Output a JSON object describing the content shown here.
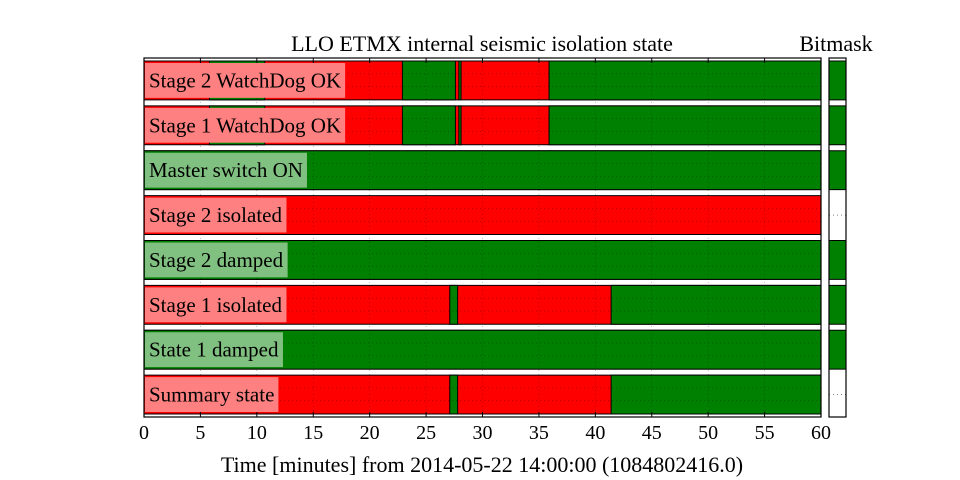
{
  "chart_data": {
    "type": "broken-barh",
    "title": "LLO ETMX internal seismic isolation state",
    "bitmask_title": "Bitmask",
    "xlabel": "Time [minutes] from 2014-05-22 14:00:00 (1084802416.0)",
    "xlim": [
      0,
      60
    ],
    "xticks": [
      0,
      5,
      10,
      15,
      20,
      25,
      30,
      35,
      40,
      45,
      50,
      55,
      60
    ],
    "grid": "dotted",
    "colors": {
      "active": "#008000",
      "inactive": "#ff0000",
      "label_active_bg": "#80c080",
      "label_inactive_bg": "#ff8080"
    },
    "rows": [
      {
        "label": "Stage 2 WatchDog OK",
        "active_segments": [
          [
            5.8,
            10.7
          ],
          [
            22.9,
            27.6
          ],
          [
            27.9,
            28.1
          ],
          [
            35.9,
            60
          ]
        ],
        "bitmask_active": true
      },
      {
        "label": "Stage 1 WatchDog OK",
        "active_segments": [
          [
            5.8,
            10.7
          ],
          [
            22.9,
            27.6
          ],
          [
            27.9,
            28.1
          ],
          [
            35.9,
            60
          ]
        ],
        "bitmask_active": true
      },
      {
        "label": "Master switch ON",
        "active_segments": [
          [
            0,
            60
          ]
        ],
        "bitmask_active": true
      },
      {
        "label": "Stage 2 isolated",
        "active_segments": [],
        "bitmask_active": false
      },
      {
        "label": "Stage 2 damped",
        "active_segments": [
          [
            0,
            60
          ]
        ],
        "bitmask_active": true
      },
      {
        "label": "Stage 1 isolated",
        "active_segments": [
          [
            27.1,
            27.8
          ],
          [
            41.4,
            60
          ]
        ],
        "bitmask_active": true
      },
      {
        "label": "State 1 damped",
        "active_segments": [
          [
            0,
            60
          ]
        ],
        "bitmask_active": true
      },
      {
        "label": "Summary state",
        "active_segments": [
          [
            27.1,
            27.8
          ],
          [
            41.4,
            60
          ]
        ],
        "bitmask_active": false
      }
    ]
  }
}
